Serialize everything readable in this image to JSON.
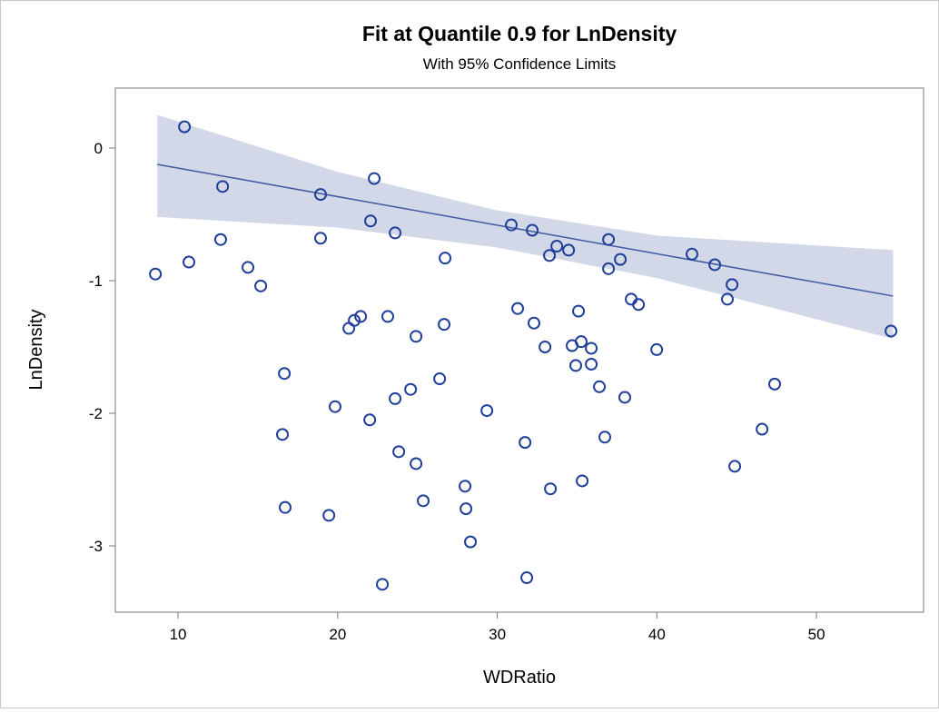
{
  "chart_data": {
    "type": "scatter",
    "title": "Fit at Quantile 0.9 for LnDensity",
    "subtitle": "With 95% Confidence Limits",
    "x_label": "WDRatio",
    "y_label": "LnDensity",
    "xlim": [
      6.07,
      56.71
    ],
    "ylim": [
      -3.5,
      0.452
    ],
    "xticks": [
      10,
      20,
      30,
      40,
      50
    ],
    "yticks": [
      -3,
      -2,
      -1,
      0
    ],
    "series": [
      {
        "color": "#1f3f9a",
        "x": [
          10.4,
          8.58,
          10.68,
          12.79,
          12.67,
          14.38,
          15.18,
          16.66,
          16.54,
          16.71,
          18.93,
          18.93,
          19.84,
          19.45,
          20.7,
          21.04,
          21.44,
          22.29,
          22.06,
          22.01,
          23.14,
          23.6,
          23.6,
          23.83,
          24.57,
          24.91,
          24.91,
          25.36,
          26.73,
          26.39,
          26.67,
          27.98,
          28.04,
          28.32,
          29.35,
          30.88,
          31.28,
          31.74,
          31.85,
          32.19,
          32.3,
          32.99,
          33.27,
          33.73,
          33.33,
          34.47,
          34.69,
          34.92,
          35.09,
          35.26,
          35.32,
          35.89,
          35.89,
          36.4,
          36.74,
          36.97,
          36.97,
          37.71,
          37.99,
          38.39,
          38.85,
          39.99,
          42.2,
          43.63,
          44.42,
          44.71,
          44.88,
          46.59,
          47.38,
          54.67,
          22.8
        ],
        "values": [
          0.16,
          -0.95,
          -0.86,
          -0.29,
          -0.69,
          -0.9,
          -1.04,
          -1.7,
          -2.16,
          -2.71,
          -0.35,
          -0.68,
          -1.95,
          -2.77,
          -1.36,
          -1.3,
          -1.27,
          -0.23,
          -0.55,
          -2.05,
          -1.27,
          -0.64,
          -1.89,
          -2.29,
          -1.82,
          -1.42,
          -2.38,
          -2.66,
          -0.83,
          -1.74,
          -1.33,
          -2.55,
          -2.72,
          -2.97,
          -1.98,
          -0.58,
          -1.21,
          -2.22,
          -3.24,
          -0.62,
          -1.32,
          -1.5,
          -0.81,
          -0.74,
          -2.57,
          -0.77,
          -1.49,
          -1.64,
          -1.23,
          -1.46,
          -2.51,
          -1.51,
          -1.63,
          -1.8,
          -2.18,
          -0.91,
          -0.69,
          -0.84,
          -1.88,
          -1.14,
          -1.18,
          -1.52,
          -0.8,
          -0.88,
          -1.14,
          -1.03,
          -2.4,
          -2.12,
          -1.78,
          -1.38,
          -3.29
        ]
      }
    ],
    "fit": {
      "color": "#3f58a0",
      "x": [
        8.7,
        54.8
      ],
      "values": [
        -0.123,
        -1.116
      ]
    },
    "band": {
      "color": "#d2d8e8",
      "x": [
        8.7,
        20,
        30,
        40,
        54.8
      ],
      "upper": [
        0.25,
        -0.18,
        -0.47,
        -0.66,
        -0.77
      ],
      "lower": [
        -0.52,
        -0.6,
        -0.75,
        -0.98,
        -1.44
      ]
    }
  }
}
